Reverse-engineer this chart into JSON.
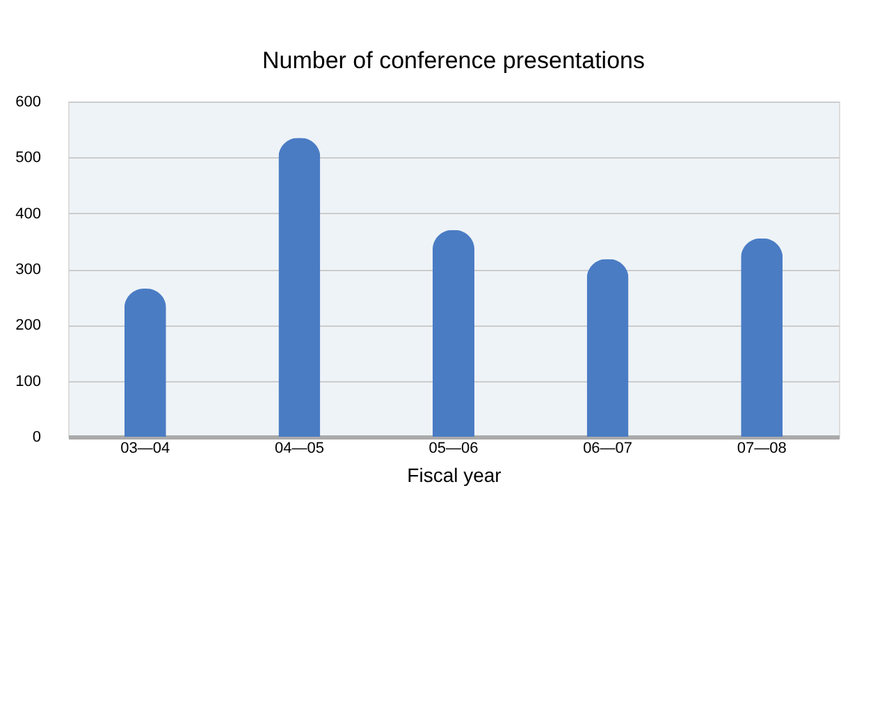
{
  "chart_data": {
    "type": "bar",
    "title": "Number of conference presentations",
    "xlabel": "Fiscal year",
    "categories": [
      "03—04",
      "04—05",
      "05—06",
      "06—07",
      "07—08"
    ],
    "values": [
      265,
      535,
      370,
      318,
      355
    ],
    "color": "#4a7cc4",
    "ylim": [
      0,
      600
    ],
    "yticks": [
      0,
      100,
      200,
      300,
      400,
      500,
      600
    ],
    "grid": "y"
  }
}
